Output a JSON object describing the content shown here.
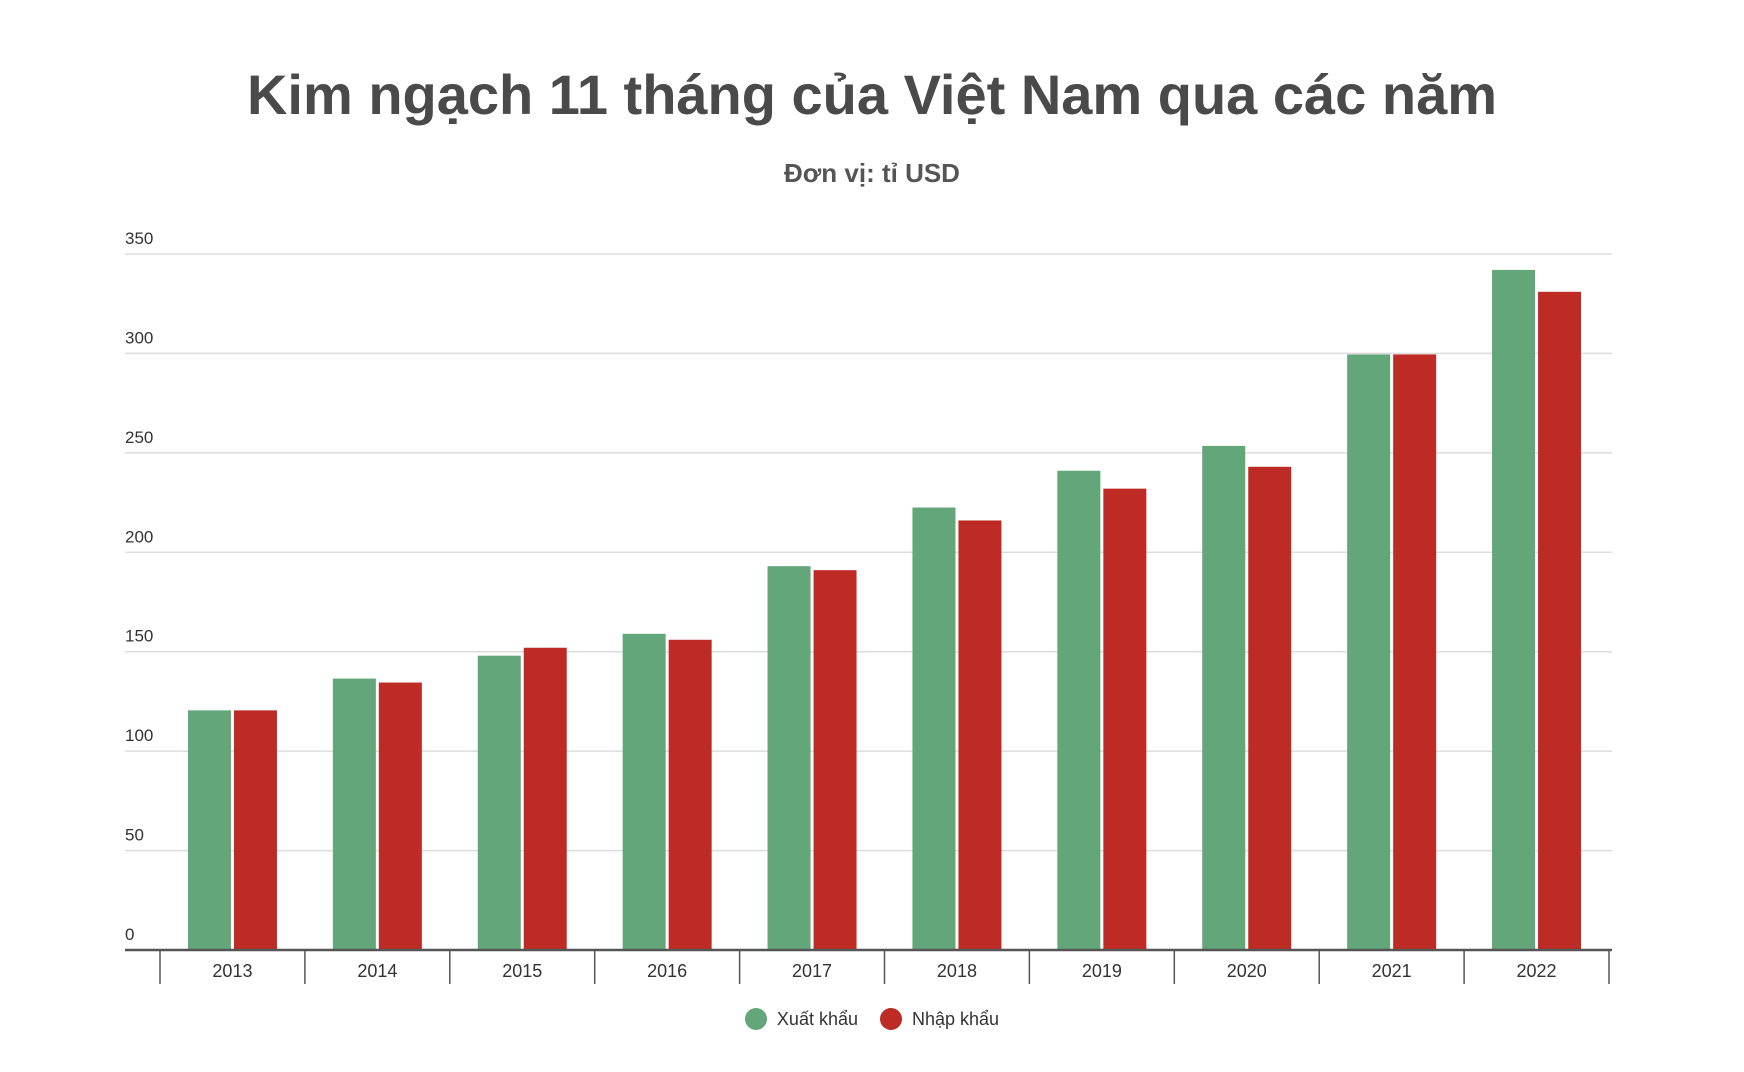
{
  "chart_data": {
    "type": "bar",
    "title": "Kim ngạch 11 tháng của Việt Nam qua các năm",
    "subtitle": "Đơn vị: tỉ USD",
    "categories": [
      "2013",
      "2014",
      "2015",
      "2016",
      "2017",
      "2018",
      "2019",
      "2020",
      "2021",
      "2022"
    ],
    "series": [
      {
        "name": "Xuất khẩu",
        "color": "#63a67a",
        "values": [
          120.5,
          136.5,
          148,
          159,
          193,
          222.5,
          241,
          253.5,
          299.5,
          342
        ]
      },
      {
        "name": "Nhập khẩu",
        "color": "#be2b24",
        "values": [
          120.5,
          134.5,
          152,
          156,
          191,
          216,
          232,
          243,
          299.5,
          331
        ]
      }
    ],
    "ylim": [
      0,
      350
    ],
    "yticks": [
      "0",
      "50",
      "100",
      "150",
      "200",
      "250",
      "300",
      "350"
    ],
    "grid": true,
    "legend_position": "bottom-center"
  }
}
